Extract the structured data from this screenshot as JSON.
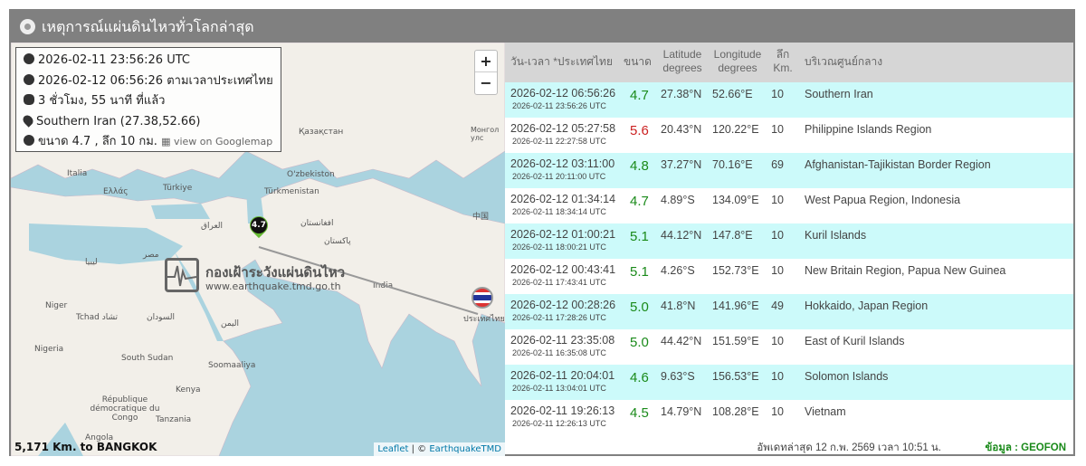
{
  "title": "เหตุการณ์แผ่นดินไหวทั่วโลกล่าสุด",
  "info": {
    "utc": "2026-02-11 23:56:26 UTC",
    "local": "2026-02-12 06:56:26 ตามเวลาประเทศไทย",
    "ago": "3 ชั่วโมง, 55 นาที ที่แล้ว",
    "location": "Southern Iran (27.38,52.66)",
    "detail": "ขนาด 4.7 , ลึก 10 กม.",
    "googlemap": "view on Googlemap"
  },
  "map": {
    "zoom_in": "+",
    "zoom_out": "−",
    "marker_mag": "4.7",
    "watermark_title": "กองเฝ้าระวังแผ่นดินไหว",
    "watermark_url": "www.earthquake.tmd.go.th",
    "thailand_label": "ประเทศไทย",
    "distance": "5,171 Km. to BANGKOK",
    "attribution_leaflet": "Leaflet",
    "attribution_sep": " | © ",
    "attribution_owner": "EarthquakeTMD",
    "labels": [
      "Қазақстан",
      "O'zbekiston",
      "Türkmenistan",
      "Türkiye",
      "Ελλάς",
      "Italia",
      "العراق",
      "افغانستان",
      "پاکستان",
      "مصر",
      "ليبيا",
      "India",
      "Niger",
      "Tchad تشاد",
      "السودان",
      "اليمن",
      "Nigeria",
      "South Sudan",
      "Soomaaliya",
      "Kenya",
      "République démocratique du Congo",
      "Tanzania",
      "中国",
      "Angola",
      "Монгол улс"
    ]
  },
  "colors": {
    "accent_green": "#1a8a1a",
    "accent_red": "#cc2222",
    "row_alt": "#ccfafa",
    "header": "#808080"
  },
  "table": {
    "headers": [
      "วัน-เวลา *ประเทศไทย",
      "ขนาด",
      "Latitude degrees",
      "Longitude degrees",
      "ลึก Km.",
      "บริเวณศูนย์กลาง"
    ],
    "rows": [
      {
        "th": "2026-02-12 06:56:26",
        "utc": "2026-02-11 23:56:26 UTC",
        "mag": "4.7",
        "lat": "27.38°N",
        "lon": "52.66°E",
        "depth": "10",
        "region": "Southern Iran"
      },
      {
        "th": "2026-02-12 05:27:58",
        "utc": "2026-02-11 22:27:58 UTC",
        "mag": "5.6",
        "lat": "20.43°N",
        "lon": "120.22°E",
        "depth": "10",
        "region": "Philippine Islands Region"
      },
      {
        "th": "2026-02-12 03:11:00",
        "utc": "2026-02-11 20:11:00 UTC",
        "mag": "4.8",
        "lat": "37.27°N",
        "lon": "70.16°E",
        "depth": "69",
        "region": "Afghanistan-Tajikistan Border Region"
      },
      {
        "th": "2026-02-12 01:34:14",
        "utc": "2026-02-11 18:34:14 UTC",
        "mag": "4.7",
        "lat": "4.89°S",
        "lon": "134.09°E",
        "depth": "10",
        "region": "West Papua Region, Indonesia"
      },
      {
        "th": "2026-02-12 01:00:21",
        "utc": "2026-02-11 18:00:21 UTC",
        "mag": "5.1",
        "lat": "44.12°N",
        "lon": "147.8°E",
        "depth": "10",
        "region": "Kuril Islands"
      },
      {
        "th": "2026-02-12 00:43:41",
        "utc": "2026-02-11 17:43:41 UTC",
        "mag": "5.1",
        "lat": "4.26°S",
        "lon": "152.73°E",
        "depth": "10",
        "region": "New Britain Region, Papua New Guinea"
      },
      {
        "th": "2026-02-12 00:28:26",
        "utc": "2026-02-11 17:28:26 UTC",
        "mag": "5.0",
        "lat": "41.8°N",
        "lon": "141.96°E",
        "depth": "49",
        "region": "Hokkaido, Japan Region"
      },
      {
        "th": "2026-02-11 23:35:08",
        "utc": "2026-02-11 16:35:08 UTC",
        "mag": "5.0",
        "lat": "44.42°N",
        "lon": "151.59°E",
        "depth": "10",
        "region": "East of Kuril Islands"
      },
      {
        "th": "2026-02-11 20:04:01",
        "utc": "2026-02-11 13:04:01 UTC",
        "mag": "4.6",
        "lat": "9.63°S",
        "lon": "156.53°E",
        "depth": "10",
        "region": "Solomon Islands"
      },
      {
        "th": "2026-02-11 19:26:13",
        "utc": "2026-02-11 12:26:13 UTC",
        "mag": "4.5",
        "lat": "14.79°N",
        "lon": "108.28°E",
        "depth": "10",
        "region": "Vietnam"
      }
    ],
    "updated": "อัพเดทล่าสุด 12 ก.พ. 2569 เวลา 10:51 น.",
    "source": "ข้อมูล : GEOFON"
  }
}
